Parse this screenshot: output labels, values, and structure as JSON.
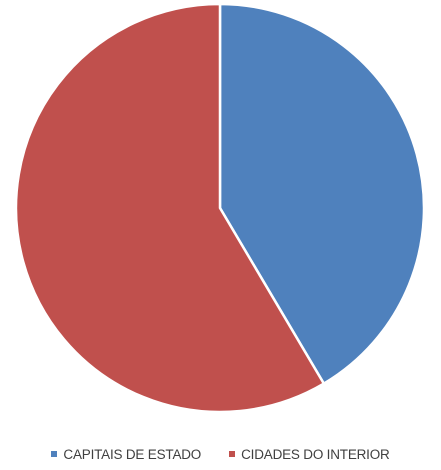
{
  "chart_data": {
    "type": "pie",
    "title": "",
    "categories": [
      "CAPITAIS DE ESTADO",
      "CIDADES DO INTERIOR"
    ],
    "values": [
      41.5,
      58.5
    ],
    "colors": [
      "#4f81bd",
      "#c0504d"
    ],
    "start_angle_deg": 0,
    "direction": "clockwise",
    "legend_position": "bottom",
    "data_labels": false
  }
}
